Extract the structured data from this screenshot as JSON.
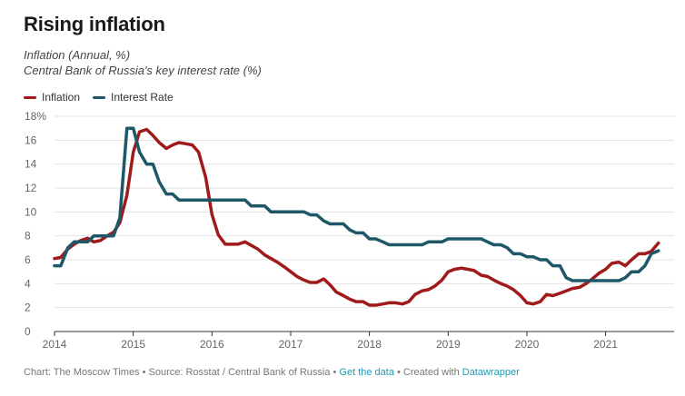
{
  "header": {
    "title": "Rising inflation",
    "subtitle_1": "Inflation (Annual, %)",
    "subtitle_2": "Central Bank of Russia's key interest rate (%)"
  },
  "legend": [
    {
      "label": "Inflation",
      "color": "#a01a1a"
    },
    {
      "label": "Interest Rate",
      "color": "#1e5868"
    }
  ],
  "footer": {
    "source": "Chart: The Moscow Times • Source: Rosstat / Central Bank of Russia • ",
    "get_data": "Get the data",
    "created_with": " • Created with ",
    "datawrapper": "Datawrapper"
  },
  "chart_data": {
    "type": "line",
    "title": "Rising inflation",
    "xlabel": "",
    "ylabel": "",
    "xlim": [
      2014.0,
      2021.87
    ],
    "ylim": [
      0,
      18
    ],
    "y_ticks": [
      0,
      2,
      4,
      6,
      8,
      10,
      12,
      14,
      16,
      18
    ],
    "y_tick_labels": [
      "0",
      "2",
      "4",
      "6",
      "8",
      "10",
      "12",
      "14",
      "16",
      "18%"
    ],
    "x_ticks": [
      2014,
      2015,
      2016,
      2017,
      2018,
      2019,
      2020,
      2021
    ],
    "x_tick_labels": [
      "2014",
      "2015",
      "2016",
      "2017",
      "2018",
      "2019",
      "2020",
      "2021"
    ],
    "grid": true,
    "series": [
      {
        "name": "Inflation",
        "color": "#a01a1a",
        "points": [
          [
            2014.0,
            6.1
          ],
          [
            2014.08,
            6.2
          ],
          [
            2014.17,
            6.9
          ],
          [
            2014.25,
            7.3
          ],
          [
            2014.33,
            7.6
          ],
          [
            2014.42,
            7.8
          ],
          [
            2014.5,
            7.5
          ],
          [
            2014.58,
            7.6
          ],
          [
            2014.67,
            8.0
          ],
          [
            2014.75,
            8.3
          ],
          [
            2014.83,
            9.1
          ],
          [
            2014.92,
            11.4
          ],
          [
            2015.0,
            15.0
          ],
          [
            2015.08,
            16.7
          ],
          [
            2015.17,
            16.9
          ],
          [
            2015.25,
            16.4
          ],
          [
            2015.33,
            15.8
          ],
          [
            2015.42,
            15.3
          ],
          [
            2015.5,
            15.6
          ],
          [
            2015.58,
            15.8
          ],
          [
            2015.67,
            15.7
          ],
          [
            2015.75,
            15.6
          ],
          [
            2015.83,
            15.0
          ],
          [
            2015.92,
            12.9
          ],
          [
            2016.0,
            9.8
          ],
          [
            2016.08,
            8.1
          ],
          [
            2016.17,
            7.3
          ],
          [
            2016.25,
            7.3
          ],
          [
            2016.33,
            7.3
          ],
          [
            2016.42,
            7.5
          ],
          [
            2016.5,
            7.2
          ],
          [
            2016.58,
            6.9
          ],
          [
            2016.67,
            6.4
          ],
          [
            2016.75,
            6.1
          ],
          [
            2016.83,
            5.8
          ],
          [
            2016.92,
            5.4
          ],
          [
            2017.0,
            5.0
          ],
          [
            2017.08,
            4.6
          ],
          [
            2017.17,
            4.3
          ],
          [
            2017.25,
            4.1
          ],
          [
            2017.33,
            4.1
          ],
          [
            2017.42,
            4.4
          ],
          [
            2017.5,
            3.9
          ],
          [
            2017.58,
            3.3
          ],
          [
            2017.67,
            3.0
          ],
          [
            2017.75,
            2.7
          ],
          [
            2017.83,
            2.5
          ],
          [
            2017.92,
            2.5
          ],
          [
            2018.0,
            2.2
          ],
          [
            2018.08,
            2.2
          ],
          [
            2018.17,
            2.3
          ],
          [
            2018.25,
            2.4
          ],
          [
            2018.33,
            2.4
          ],
          [
            2018.42,
            2.3
          ],
          [
            2018.5,
            2.5
          ],
          [
            2018.58,
            3.1
          ],
          [
            2018.67,
            3.4
          ],
          [
            2018.75,
            3.5
          ],
          [
            2018.83,
            3.8
          ],
          [
            2018.92,
            4.3
          ],
          [
            2019.0,
            5.0
          ],
          [
            2019.08,
            5.2
          ],
          [
            2019.17,
            5.3
          ],
          [
            2019.25,
            5.2
          ],
          [
            2019.33,
            5.1
          ],
          [
            2019.42,
            4.7
          ],
          [
            2019.5,
            4.6
          ],
          [
            2019.58,
            4.3
          ],
          [
            2019.67,
            4.0
          ],
          [
            2019.75,
            3.8
          ],
          [
            2019.83,
            3.5
          ],
          [
            2019.92,
            3.0
          ],
          [
            2020.0,
            2.4
          ],
          [
            2020.08,
            2.3
          ],
          [
            2020.17,
            2.5
          ],
          [
            2020.25,
            3.1
          ],
          [
            2020.33,
            3.0
          ],
          [
            2020.42,
            3.2
          ],
          [
            2020.5,
            3.4
          ],
          [
            2020.58,
            3.6
          ],
          [
            2020.67,
            3.7
          ],
          [
            2020.75,
            4.0
          ],
          [
            2020.83,
            4.4
          ],
          [
            2020.92,
            4.9
          ],
          [
            2021.0,
            5.2
          ],
          [
            2021.08,
            5.7
          ],
          [
            2021.17,
            5.8
          ],
          [
            2021.25,
            5.5
          ],
          [
            2021.33,
            6.0
          ],
          [
            2021.42,
            6.5
          ],
          [
            2021.5,
            6.5
          ],
          [
            2021.58,
            6.7
          ],
          [
            2021.67,
            7.4
          ]
        ]
      },
      {
        "name": "Interest Rate",
        "color": "#1e5868",
        "points": [
          [
            2014.0,
            5.5
          ],
          [
            2014.08,
            5.5
          ],
          [
            2014.17,
            7.0
          ],
          [
            2014.25,
            7.5
          ],
          [
            2014.33,
            7.5
          ],
          [
            2014.42,
            7.5
          ],
          [
            2014.5,
            8.0
          ],
          [
            2014.67,
            8.0
          ],
          [
            2014.75,
            8.0
          ],
          [
            2014.83,
            9.5
          ],
          [
            2014.92,
            17.0
          ],
          [
            2015.0,
            17.0
          ],
          [
            2015.08,
            15.0
          ],
          [
            2015.17,
            14.0
          ],
          [
            2015.25,
            14.0
          ],
          [
            2015.33,
            12.5
          ],
          [
            2015.42,
            11.5
          ],
          [
            2015.5,
            11.5
          ],
          [
            2015.58,
            11.0
          ],
          [
            2016.42,
            11.0
          ],
          [
            2016.5,
            10.5
          ],
          [
            2016.67,
            10.5
          ],
          [
            2016.75,
            10.0
          ],
          [
            2017.17,
            10.0
          ],
          [
            2017.25,
            9.75
          ],
          [
            2017.33,
            9.75
          ],
          [
            2017.42,
            9.25
          ],
          [
            2017.5,
            9.0
          ],
          [
            2017.67,
            9.0
          ],
          [
            2017.75,
            8.5
          ],
          [
            2017.83,
            8.25
          ],
          [
            2017.92,
            8.25
          ],
          [
            2018.0,
            7.75
          ],
          [
            2018.08,
            7.75
          ],
          [
            2018.17,
            7.5
          ],
          [
            2018.25,
            7.25
          ],
          [
            2018.67,
            7.25
          ],
          [
            2018.75,
            7.5
          ],
          [
            2018.92,
            7.5
          ],
          [
            2019.0,
            7.75
          ],
          [
            2019.42,
            7.75
          ],
          [
            2019.5,
            7.5
          ],
          [
            2019.58,
            7.25
          ],
          [
            2019.67,
            7.25
          ],
          [
            2019.75,
            7.0
          ],
          [
            2019.83,
            6.5
          ],
          [
            2019.92,
            6.5
          ],
          [
            2020.0,
            6.25
          ],
          [
            2020.08,
            6.25
          ],
          [
            2020.17,
            6.0
          ],
          [
            2020.25,
            6.0
          ],
          [
            2020.33,
            5.5
          ],
          [
            2020.42,
            5.5
          ],
          [
            2020.5,
            4.5
          ],
          [
            2020.58,
            4.25
          ],
          [
            2021.17,
            4.25
          ],
          [
            2021.25,
            4.5
          ],
          [
            2021.33,
            5.0
          ],
          [
            2021.42,
            5.0
          ],
          [
            2021.5,
            5.5
          ],
          [
            2021.58,
            6.5
          ],
          [
            2021.67,
            6.75
          ]
        ]
      }
    ]
  }
}
